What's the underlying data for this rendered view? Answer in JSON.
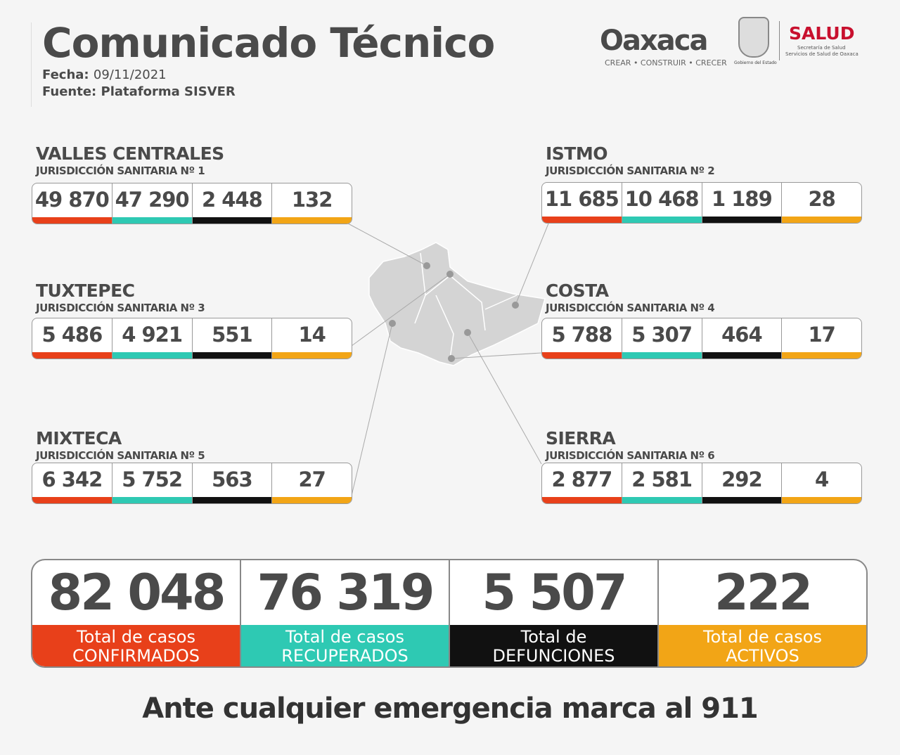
{
  "header": {
    "title": "Comunicado Técnico",
    "fecha_label": "Fecha:",
    "fecha": "09/11/2021",
    "fuente_label": "Fuente:",
    "fuente": "Plataforma SISVER"
  },
  "logos": {
    "oaxaca": "Oaxaca",
    "oaxaca_tagline": "CREAR • CONSTRUIR • CRECER",
    "gobierno": "Gobierno del Estado",
    "salud": "SALUD",
    "salud_sub1": "Secretaría de Salud",
    "salud_sub2": "Servicios de Salud de Oaxaca"
  },
  "colors": {
    "confirmados": "#e8401a",
    "recuperados": "#2ec9b3",
    "defunciones": "#111111",
    "activos": "#f2a516"
  },
  "regions": [
    {
      "name": "VALLES CENTRALES",
      "sub": "JURISDICCIÓN SANITARIA Nº 1",
      "values": [
        "49 870",
        "47 290",
        "2 448",
        "132"
      ]
    },
    {
      "name": "ISTMO",
      "sub": "JURISDICCIÓN SANITARIA Nº 2",
      "values": [
        "11 685",
        "10 468",
        "1 189",
        "28"
      ]
    },
    {
      "name": "TUXTEPEC",
      "sub": "JURISDICCIÓN SANITARIA Nº 3",
      "values": [
        "5 486",
        "4 921",
        "551",
        "14"
      ]
    },
    {
      "name": "COSTA",
      "sub": "JURISDICCIÓN SANITARIA Nº 4",
      "values": [
        "5 788",
        "5 307",
        "464",
        "17"
      ]
    },
    {
      "name": "MIXTECA",
      "sub": "JURISDICCIÓN SANITARIA Nº 5",
      "values": [
        "6 342",
        "5 752",
        "563",
        "27"
      ]
    },
    {
      "name": "SIERRA",
      "sub": "JURISDICCIÓN SANITARIA Nº 6",
      "values": [
        "2 877",
        "2 581",
        "292",
        "4"
      ]
    }
  ],
  "totals": [
    {
      "value": "82 048",
      "label1": "Total de casos",
      "label2": "CONFIRMADOS"
    },
    {
      "value": "76 319",
      "label1": "Total de casos",
      "label2": "RECUPERADOS"
    },
    {
      "value": "5 507",
      "label1": "Total de",
      "label2": "DEFUNCIONES"
    },
    {
      "value": "222",
      "label1": "Total de casos",
      "label2": "ACTIVOS"
    }
  ],
  "footer": "Ante cualquier emergencia marca al 911"
}
